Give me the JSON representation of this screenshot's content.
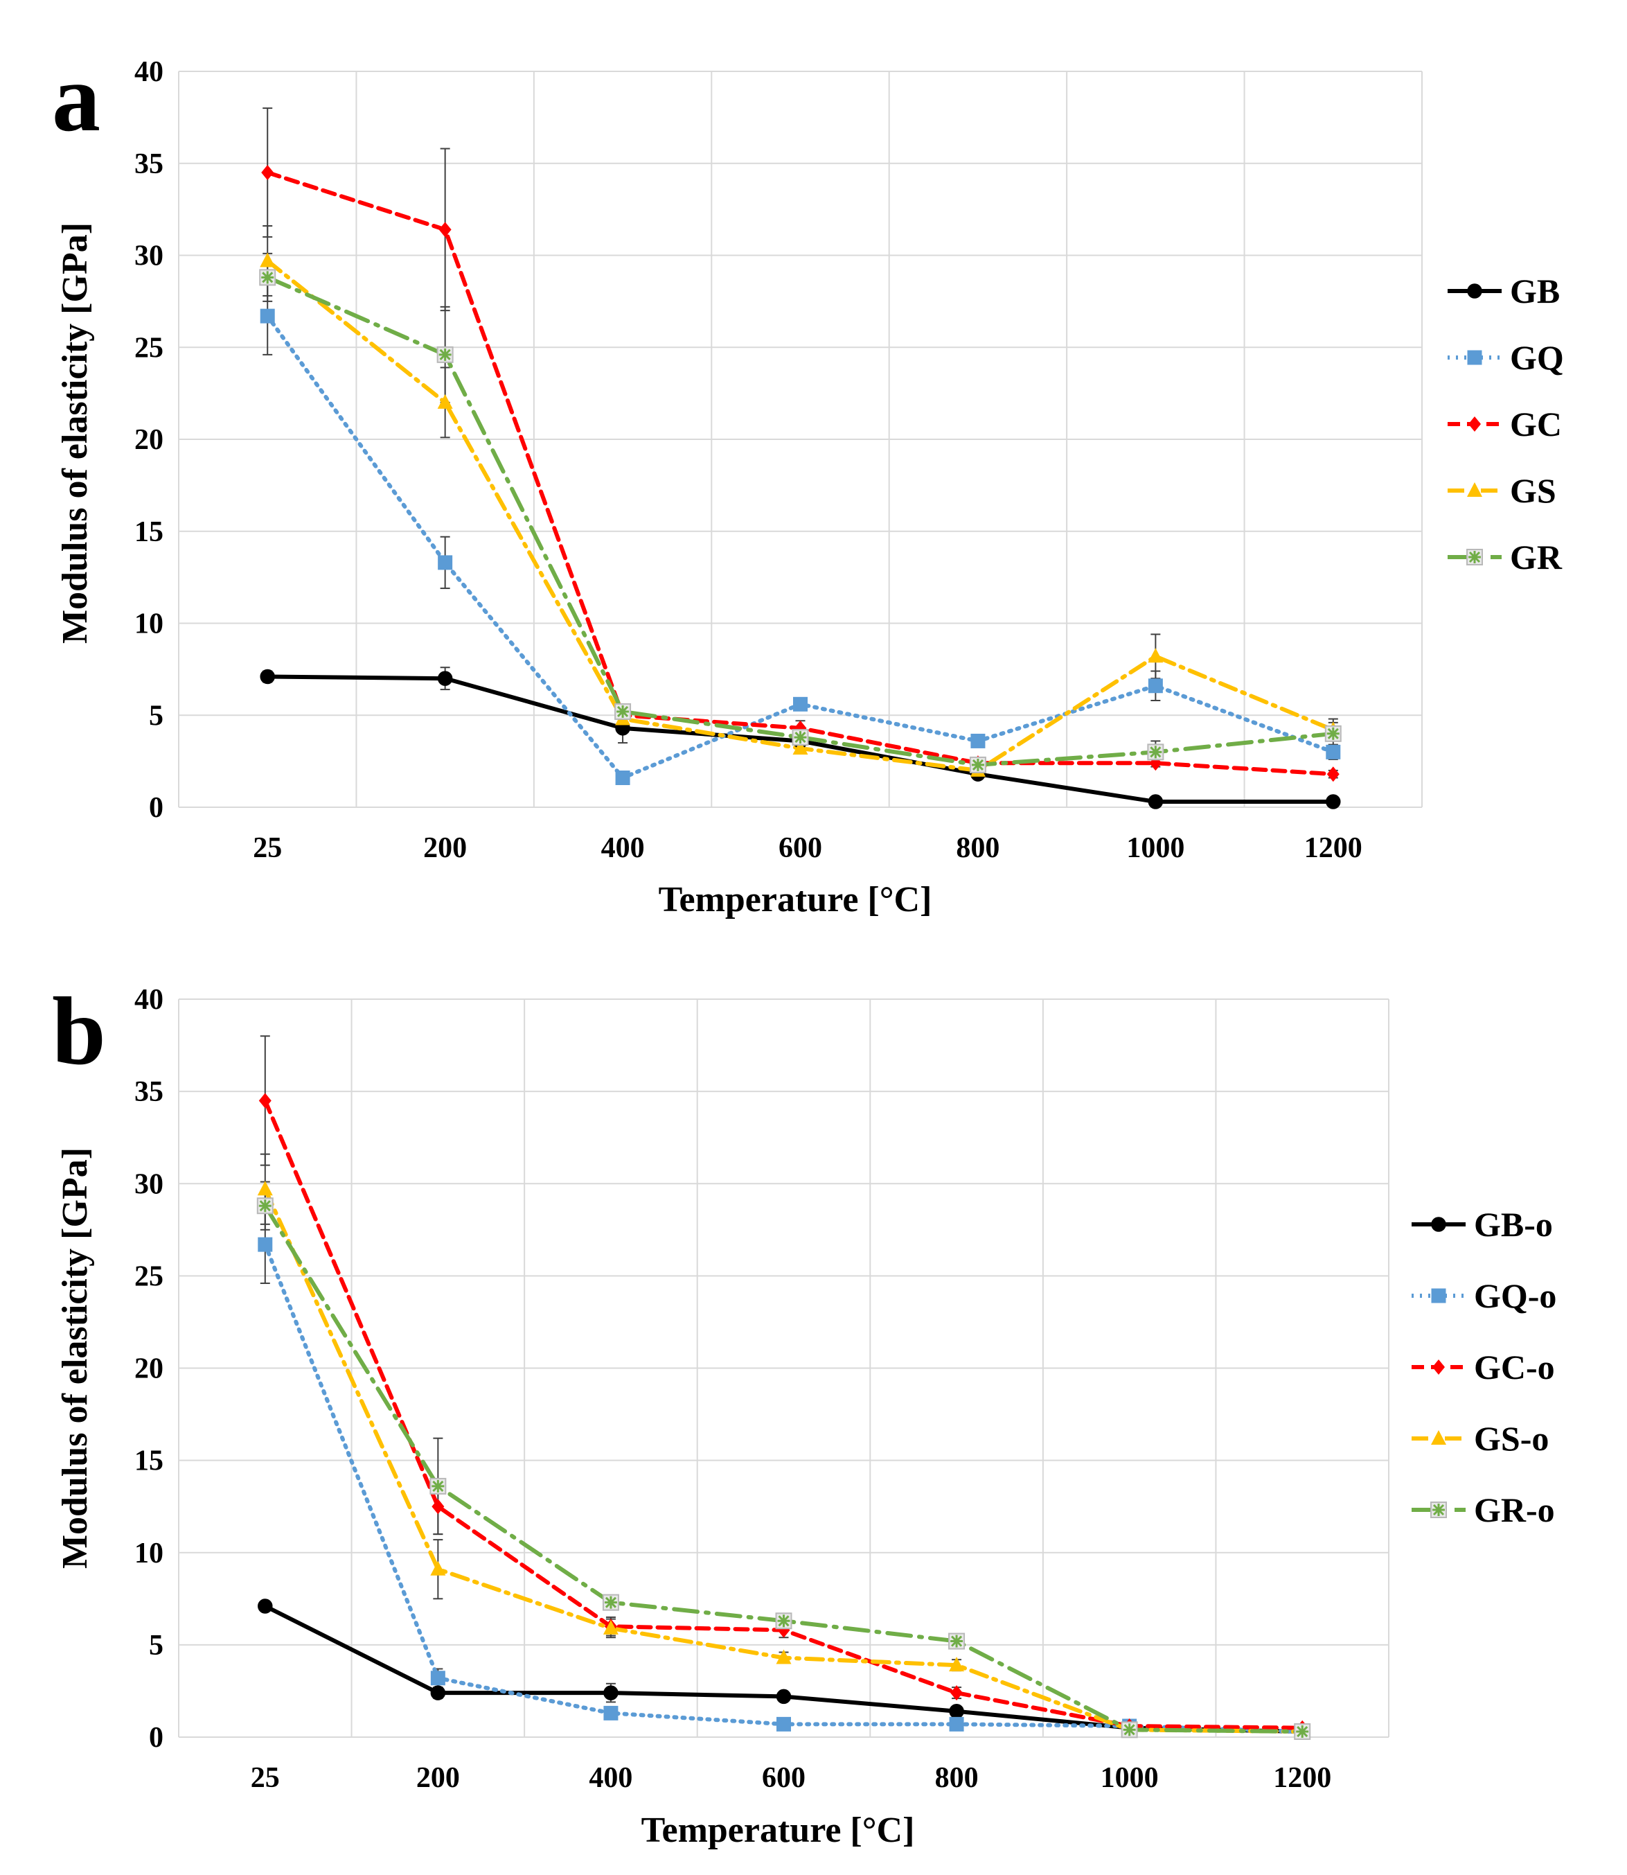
{
  "chart_data": [
    {
      "panel": "a",
      "type": "line",
      "x": [
        "25",
        "200",
        "400",
        "600",
        "800",
        "1000",
        "1200"
      ],
      "xlabel": "Temperature [°C]",
      "ylabel": "Modulus of elasticity [GPa]",
      "ylim": [
        0,
        40
      ],
      "yticks": [
        "0",
        "5",
        "10",
        "15",
        "20",
        "25",
        "30",
        "35",
        "40"
      ],
      "grid": true,
      "legend_position": "right",
      "series": [
        {
          "key": "gb",
          "name": "GB",
          "color": "#000000",
          "dash": "",
          "marker": "circle",
          "values": [
            7.1,
            7.0,
            4.3,
            3.6,
            1.8,
            0.3,
            0.3
          ],
          "errors": [
            0.3,
            0.6,
            0.8,
            0.3,
            0.2,
            0.1,
            0.1
          ]
        },
        {
          "key": "gq",
          "name": "GQ",
          "color": "#5b9bd5",
          "dash": "3,9",
          "marker": "square",
          "values": [
            26.7,
            13.3,
            1.6,
            5.6,
            3.6,
            6.6,
            3.0
          ],
          "errors": [
            2.1,
            1.4,
            0.3,
            0.3,
            0.3,
            0.8,
            0.4
          ]
        },
        {
          "key": "gc",
          "name": "GC",
          "color": "#ff0000",
          "dash": "18,10",
          "marker": "diamond",
          "values": [
            34.5,
            31.4,
            5.0,
            4.3,
            2.4,
            2.4,
            1.8
          ],
          "errors": [
            3.5,
            4.4,
            0.5,
            0.4,
            0.2,
            0.2,
            0.2
          ]
        },
        {
          "key": "gs",
          "name": "GS",
          "color": "#ffc000",
          "dash": "24,10,4,10",
          "marker": "triangle",
          "values": [
            29.7,
            22.0,
            4.8,
            3.2,
            2.0,
            8.2,
            4.2
          ],
          "errors": [
            1.9,
            1.9,
            0.4,
            0.3,
            0.3,
            1.2,
            0.6
          ]
        },
        {
          "key": "gr",
          "name": "GR",
          "color": "#70ad47",
          "dash": "34,12,4,12",
          "marker": "star",
          "values": [
            28.8,
            24.6,
            5.2,
            3.8,
            2.3,
            3.0,
            4.0
          ],
          "errors": [
            1.3,
            2.6,
            0.4,
            0.3,
            0.2,
            0.6,
            0.6
          ]
        }
      ]
    },
    {
      "panel": "b",
      "type": "line",
      "x": [
        "25",
        "200",
        "400",
        "600",
        "800",
        "1000",
        "1200"
      ],
      "xlabel": "Temperature [°C]",
      "ylabel": "Modulus of elasticity [GPa]",
      "ylim": [
        0,
        40
      ],
      "yticks": [
        "0",
        "5",
        "10",
        "15",
        "20",
        "25",
        "30",
        "35",
        "40"
      ],
      "grid": true,
      "legend_position": "right",
      "series": [
        {
          "key": "gbo",
          "name": "GB-o",
          "color": "#000000",
          "dash": "",
          "marker": "circle",
          "values": [
            7.1,
            2.4,
            2.4,
            2.2,
            1.4,
            0.5,
            0.3
          ],
          "errors": [
            0.2,
            0.3,
            0.5,
            0.2,
            0.2,
            0.1,
            0.1
          ]
        },
        {
          "key": "gqo",
          "name": "GQ-o",
          "color": "#5b9bd5",
          "dash": "3,9",
          "marker": "square",
          "values": [
            26.7,
            3.2,
            1.3,
            0.7,
            0.7,
            0.6,
            0.3
          ],
          "errors": [
            2.1,
            0.5,
            0.2,
            0.1,
            0.1,
            0.1,
            0.1
          ]
        },
        {
          "key": "gco",
          "name": "GC-o",
          "color": "#ff0000",
          "dash": "18,10",
          "marker": "diamond",
          "values": [
            34.5,
            12.5,
            6.0,
            5.8,
            2.4,
            0.6,
            0.5
          ],
          "errors": [
            3.5,
            1.5,
            0.5,
            0.4,
            0.3,
            0.1,
            0.1
          ]
        },
        {
          "key": "gso",
          "name": "GS-o",
          "color": "#ffc000",
          "dash": "24,10,4,10",
          "marker": "triangle",
          "values": [
            29.7,
            9.1,
            5.9,
            4.3,
            3.9,
            0.4,
            0.3
          ],
          "errors": [
            1.9,
            1.6,
            0.5,
            0.3,
            0.3,
            0.1,
            0.1
          ]
        },
        {
          "key": "gro",
          "name": "GR-o",
          "color": "#70ad47",
          "dash": "34,12,4,12",
          "marker": "star",
          "values": [
            28.8,
            13.6,
            7.3,
            6.3,
            5.2,
            0.4,
            0.3
          ],
          "errors": [
            1.3,
            2.6,
            0.4,
            0.3,
            0.3,
            0.1,
            0.1
          ]
        }
      ]
    }
  ]
}
